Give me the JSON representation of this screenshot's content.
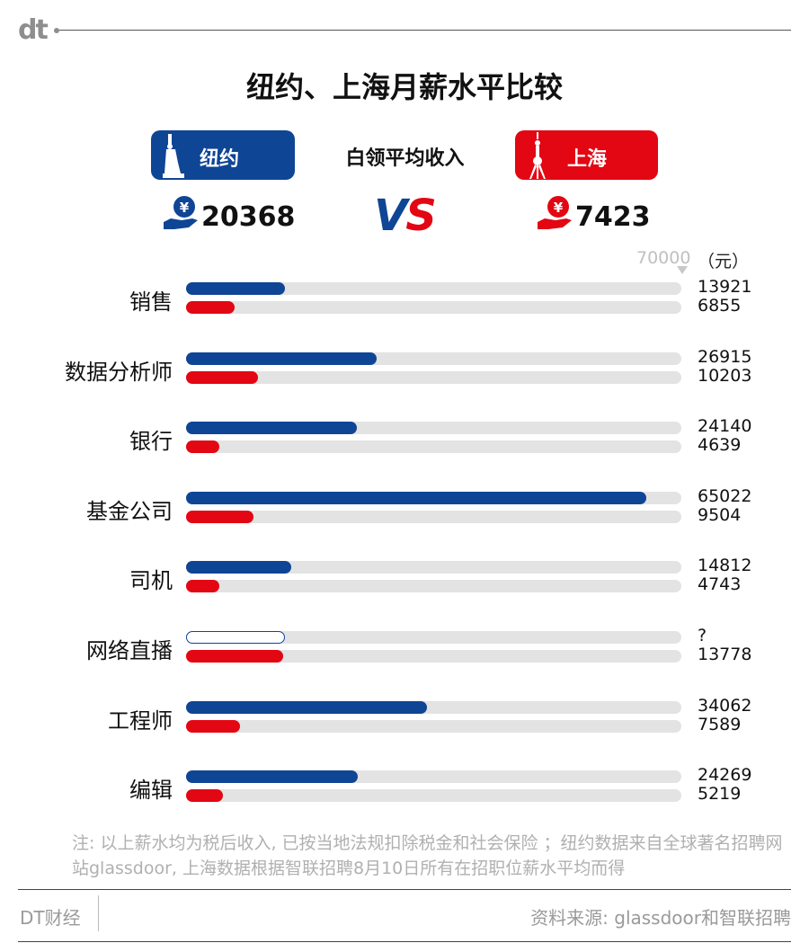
{
  "header": {
    "logo": "dt"
  },
  "title": "纽约、上海月薪水平比较",
  "subtitle": "白领平均收入",
  "cities": {
    "ny": {
      "name": "纽约",
      "average": "20368",
      "color": "#0f4595"
    },
    "sh": {
      "name": "上海",
      "average": "7423",
      "color": "#e30613"
    }
  },
  "vs": {
    "v": "V",
    "s": "S"
  },
  "scale": {
    "max_label": "70000",
    "unit": "（元）"
  },
  "chart_data": {
    "type": "bar",
    "title": "纽约、上海月薪水平比较",
    "xlim": [
      0,
      70000
    ],
    "categories": [
      "销售",
      "数据分析师",
      "银行",
      "基金公司",
      "司机",
      "网络直播",
      "工程师",
      "编辑"
    ],
    "series": [
      {
        "name": "纽约",
        "values": [
          13921,
          26915,
          24140,
          65022,
          14812,
          null,
          34062,
          24269
        ],
        "labels": [
          "13921",
          "26915",
          "24140",
          "65022",
          "14812",
          "?",
          "34062",
          "24269"
        ]
      },
      {
        "name": "上海",
        "values": [
          6855,
          10203,
          4639,
          9504,
          4743,
          13778,
          7589,
          5219
        ],
        "labels": [
          "6855",
          "10203",
          "4639",
          "9504",
          "4743",
          "13778",
          "7589",
          "5219"
        ]
      }
    ]
  },
  "footer": {
    "note": "注: 以上薪水均为税后收入, 已按当地法规扣除税金和社会保险 ；纽约数据来自全球著名招聘网站glassdoor, 上海数据根据智联招聘8月10日所有在招职位薪水平均而得",
    "brand": "DT财经",
    "source": "资料来源: glassdoor和智联招聘"
  }
}
